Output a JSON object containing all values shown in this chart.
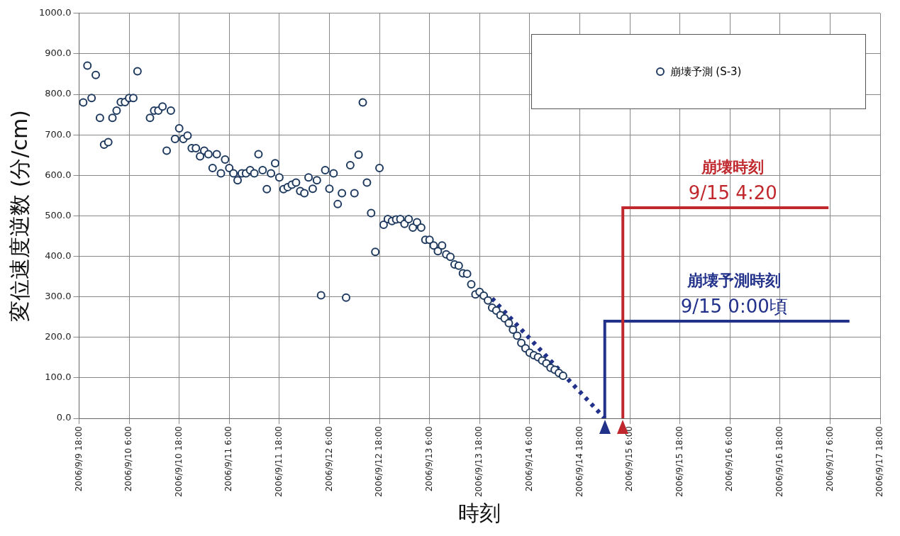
{
  "chart_data": {
    "type": "scatter",
    "xlabel": "時刻",
    "ylabel": "変位速度逆数 (分/cm)",
    "x": [
      "2006-09-09T19:00",
      "2006-09-09T20:00",
      "2006-09-09T21:00",
      "2006-09-09T22:00",
      "2006-09-09T23:00",
      "2006-09-10T00:00",
      "2006-09-10T01:00",
      "2006-09-10T02:00",
      "2006-09-10T03:00",
      "2006-09-10T04:00",
      "2006-09-10T05:00",
      "2006-09-10T06:00",
      "2006-09-10T07:00",
      "2006-09-10T08:00",
      "2006-09-10T11:00",
      "2006-09-10T12:00",
      "2006-09-10T13:00",
      "2006-09-10T14:00",
      "2006-09-10T15:00",
      "2006-09-10T16:00",
      "2006-09-10T17:00",
      "2006-09-10T18:00",
      "2006-09-10T19:00",
      "2006-09-10T20:00",
      "2006-09-10T21:00",
      "2006-09-10T22:00",
      "2006-09-10T23:00",
      "2006-09-11T00:00",
      "2006-09-11T01:00",
      "2006-09-11T02:00",
      "2006-09-11T03:00",
      "2006-09-11T04:00",
      "2006-09-11T05:00",
      "2006-09-11T06:00",
      "2006-09-11T07:00",
      "2006-09-11T08:00",
      "2006-09-11T09:00",
      "2006-09-11T10:00",
      "2006-09-11T11:00",
      "2006-09-11T12:00",
      "2006-09-11T13:00",
      "2006-09-11T14:00",
      "2006-09-11T15:00",
      "2006-09-11T16:00",
      "2006-09-11T17:00",
      "2006-09-11T18:00",
      "2006-09-11T19:00",
      "2006-09-11T20:00",
      "2006-09-11T21:00",
      "2006-09-11T22:00",
      "2006-09-11T23:00",
      "2006-09-12T00:00",
      "2006-09-12T01:00",
      "2006-09-12T02:00",
      "2006-09-12T03:00",
      "2006-09-12T04:00",
      "2006-09-12T05:00",
      "2006-09-12T06:00",
      "2006-09-12T07:00",
      "2006-09-12T08:00",
      "2006-09-12T09:00",
      "2006-09-12T10:00",
      "2006-09-12T11:00",
      "2006-09-12T12:00",
      "2006-09-12T13:00",
      "2006-09-12T14:00",
      "2006-09-12T15:00",
      "2006-09-12T16:00",
      "2006-09-12T17:00",
      "2006-09-12T18:00",
      "2006-09-12T19:00",
      "2006-09-12T20:00",
      "2006-09-12T21:00",
      "2006-09-12T22:00",
      "2006-09-12T23:00",
      "2006-09-13T00:00",
      "2006-09-13T01:00",
      "2006-09-13T02:00",
      "2006-09-13T03:00",
      "2006-09-13T04:00",
      "2006-09-13T05:00",
      "2006-09-13T06:00",
      "2006-09-13T07:00",
      "2006-09-13T08:00",
      "2006-09-13T09:00",
      "2006-09-13T10:00",
      "2006-09-13T11:00",
      "2006-09-13T12:00",
      "2006-09-13T13:00",
      "2006-09-13T14:00",
      "2006-09-13T15:00",
      "2006-09-13T16:00",
      "2006-09-13T17:00",
      "2006-09-13T18:00",
      "2006-09-13T19:00",
      "2006-09-13T20:00",
      "2006-09-13T21:00",
      "2006-09-13T22:00",
      "2006-09-13T23:00",
      "2006-09-14T00:00",
      "2006-09-14T01:00",
      "2006-09-14T02:00",
      "2006-09-14T03:00",
      "2006-09-14T04:00",
      "2006-09-14T05:00",
      "2006-09-14T06:00",
      "2006-09-14T07:00",
      "2006-09-14T08:00",
      "2006-09-14T09:00",
      "2006-09-14T10:00",
      "2006-09-14T11:00",
      "2006-09-14T12:00",
      "2006-09-14T13:00",
      "2006-09-14T14:00"
    ],
    "series": [
      {
        "name": "崩壊予測 (S-3)",
        "color": "#1f3a5f",
        "marker": "circle",
        "values": [
          780,
          871,
          791,
          848,
          742,
          676,
          682,
          742,
          760,
          781,
          781,
          791,
          791,
          857,
          742,
          760,
          760,
          770,
          661,
          760,
          690,
          716,
          690,
          698,
          667,
          667,
          647,
          661,
          652,
          618,
          652,
          605,
          639,
          618,
          605,
          588,
          605,
          605,
          613,
          605,
          652,
          613,
          566,
          605,
          630,
          595,
          566,
          571,
          577,
          582,
          561,
          556,
          595,
          567,
          588,
          304,
          613,
          567,
          605,
          529,
          556,
          298,
          625,
          556,
          651,
          780,
          582,
          507,
          411,
          618,
          478,
          492,
          487,
          491,
          492,
          480,
          492,
          471,
          484,
          471,
          441,
          441,
          427,
          413,
          427,
          405,
          399,
          380,
          377,
          358,
          357,
          331,
          306,
          312,
          303,
          291,
          273,
          266,
          255,
          247,
          235,
          219,
          204,
          186,
          173,
          162,
          156,
          151,
          143,
          136,
          125,
          120,
          112,
          105
        ]
      },
      {
        "type": "line",
        "color": "#22318a",
        "line_style": "dotted",
        "marker": "none",
        "x": [
          "2006-09-13T21:00",
          "2006-09-15T00:00"
        ],
        "values": [
          296,
          0
        ]
      }
    ],
    "xlim": [
      "2006-09-09T18:00",
      "2006-09-17T18:00"
    ],
    "xticks": [
      {
        "value": "2006-09-09T18:00",
        "label": "2006/9/9 18:00"
      },
      {
        "value": "2006-09-10T06:00",
        "label": "2006/9/10 6:00"
      },
      {
        "value": "2006-09-10T18:00",
        "label": "2006/9/10 18:00"
      },
      {
        "value": "2006-09-11T06:00",
        "label": "2006/9/11 6:00"
      },
      {
        "value": "2006-09-11T18:00",
        "label": "2006/9/11 18:00"
      },
      {
        "value": "2006-09-12T06:00",
        "label": "2006/9/12 6:00"
      },
      {
        "value": "2006-09-12T18:00",
        "label": "2006/9/12 18:00"
      },
      {
        "value": "2006-09-13T06:00",
        "label": "2006/9/13 6:00"
      },
      {
        "value": "2006-09-13T18:00",
        "label": "2006/9/13 18:00"
      },
      {
        "value": "2006-09-14T06:00",
        "label": "2006/9/14 6:00"
      },
      {
        "value": "2006-09-14T18:00",
        "label": "2006/9/14 18:00"
      },
      {
        "value": "2006-09-15T06:00",
        "label": "2006/9/15 6:00"
      },
      {
        "value": "2006-09-15T18:00",
        "label": "2006/9/15 18:00"
      },
      {
        "value": "2006-09-16T06:00",
        "label": "2006/9/16 6:00"
      },
      {
        "value": "2006-09-16T18:00",
        "label": "2006/9/16 18:00"
      },
      {
        "value": "2006-09-17T06:00",
        "label": "2006/9/17 6:00"
      },
      {
        "value": "2006-09-17T18:00",
        "label": "2006/9/17 18:00"
      }
    ],
    "ylim": [
      0,
      1000
    ],
    "yticks": [
      {
        "value": 0,
        "label": "0.0"
      },
      {
        "value": 100,
        "label": "100.0"
      },
      {
        "value": 200,
        "label": "200.0"
      },
      {
        "value": 300,
        "label": "300.0"
      },
      {
        "value": 400,
        "label": "400.0"
      },
      {
        "value": 500,
        "label": "500.0"
      },
      {
        "value": 600,
        "label": "600.0"
      },
      {
        "value": 700,
        "label": "700.0"
      },
      {
        "value": 800,
        "label": "800.0"
      },
      {
        "value": 900,
        "label": "900.0"
      },
      {
        "value": 1000,
        "label": "1000.0"
      }
    ],
    "ref_lines": [
      {
        "axis": "x",
        "value": "2006-09-15T00:00",
        "label": "崩壊予測時刻\n9/15 0:00頃",
        "color": "#22318a"
      },
      {
        "axis": "x",
        "value": "2006-09-15T04:20",
        "label": "崩壊時刻\n9/15 4:20",
        "color": "#c0282d"
      }
    ],
    "grid": true,
    "legend": "top right"
  }
}
